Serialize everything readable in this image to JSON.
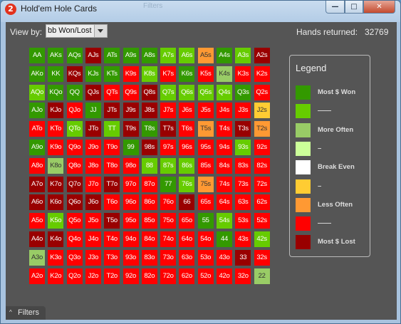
{
  "window": {
    "title": "Hold'em Hole Cards",
    "ghost_title": "Filters"
  },
  "app_icon": {
    "glyph": "2",
    "color": "#e2321d"
  },
  "window_controls": {
    "minimize": "—",
    "maximize": "□",
    "close": "✕"
  },
  "toolbar": {
    "view_by_label": "View by:",
    "view_by_value": "bb Won/Lost"
  },
  "hands": {
    "label": "Hands returned:",
    "value": "32769"
  },
  "palette": {
    "dg": "#339900",
    "mg": "#66cc00",
    "lg": "#99cc66",
    "pg": "#ccff99",
    "w": "#ffffff",
    "yo": "#ffcc33",
    "or": "#ff9933",
    "rd": "#ff0000",
    "dr": "#990000"
  },
  "legend": {
    "title": "Legend",
    "items": [
      {
        "color": "#339900",
        "label": "Most $ Won"
      },
      {
        "color": "#66cc00",
        "label": "——"
      },
      {
        "color": "#99cc66",
        "label": "More Often"
      },
      {
        "color": "#ccff99",
        "label": "–"
      },
      {
        "color": "#ffffff",
        "label": "Break Even"
      },
      {
        "color": "#ffcc33",
        "label": "–"
      },
      {
        "color": "#ff9933",
        "label": "Less Often"
      },
      {
        "color": "#ff0000",
        "label": "——"
      },
      {
        "color": "#990000",
        "label": "Most $ Lost"
      }
    ]
  },
  "grid": {
    "rows": [
      [
        [
          "AA",
          "dg"
        ],
        [
          "AKs",
          "dg"
        ],
        [
          "AQs",
          "dg"
        ],
        [
          "AJs",
          "dr"
        ],
        [
          "ATs",
          "dg"
        ],
        [
          "A9s",
          "dg"
        ],
        [
          "A8s",
          "dg"
        ],
        [
          "A7s",
          "mg"
        ],
        [
          "A6s",
          "mg"
        ],
        [
          "A5s",
          "or"
        ],
        [
          "A4s",
          "dg"
        ],
        [
          "A3s",
          "mg"
        ],
        [
          "A2s",
          "dr"
        ]
      ],
      [
        [
          "AKo",
          "dg"
        ],
        [
          "KK",
          "dg"
        ],
        [
          "KQs",
          "dr"
        ],
        [
          "KJs",
          "dg"
        ],
        [
          "KTs",
          "dg"
        ],
        [
          "K9s",
          "rd"
        ],
        [
          "K8s",
          "mg"
        ],
        [
          "K7s",
          "rd"
        ],
        [
          "K6s",
          "dg"
        ],
        [
          "K5s",
          "rd"
        ],
        [
          "K4s",
          "lg"
        ],
        [
          "K3s",
          "rd"
        ],
        [
          "K2s",
          "rd"
        ]
      ],
      [
        [
          "AQo",
          "mg"
        ],
        [
          "KQo",
          "dg"
        ],
        [
          "QQ",
          "dg"
        ],
        [
          "QJs",
          "dr"
        ],
        [
          "QTs",
          "rd"
        ],
        [
          "Q9s",
          "rd"
        ],
        [
          "Q8s",
          "dr"
        ],
        [
          "Q7s",
          "mg"
        ],
        [
          "Q6s",
          "mg"
        ],
        [
          "Q5s",
          "mg"
        ],
        [
          "Q4s",
          "mg"
        ],
        [
          "Q3s",
          "dg"
        ],
        [
          "Q2s",
          "rd"
        ]
      ],
      [
        [
          "AJo",
          "dg"
        ],
        [
          "KJo",
          "dr"
        ],
        [
          "QJo",
          "rd"
        ],
        [
          "JJ",
          "dg"
        ],
        [
          "JTs",
          "dr"
        ],
        [
          "J9s",
          "dr"
        ],
        [
          "J8s",
          "dr"
        ],
        [
          "J7s",
          "rd"
        ],
        [
          "J6s",
          "rd"
        ],
        [
          "J5s",
          "rd"
        ],
        [
          "J4s",
          "rd"
        ],
        [
          "J3s",
          "rd"
        ],
        [
          "J2s",
          "yo"
        ]
      ],
      [
        [
          "ATo",
          "rd"
        ],
        [
          "KTo",
          "rd"
        ],
        [
          "QTo",
          "mg"
        ],
        [
          "JTo",
          "dr"
        ],
        [
          "TT",
          "mg"
        ],
        [
          "T9s",
          "dr"
        ],
        [
          "T8s",
          "dg"
        ],
        [
          "T7s",
          "dr"
        ],
        [
          "T6s",
          "rd"
        ],
        [
          "T5s",
          "or"
        ],
        [
          "T4s",
          "rd"
        ],
        [
          "T3s",
          "dr"
        ],
        [
          "T2s",
          "or"
        ]
      ],
      [
        [
          "A9o",
          "dg"
        ],
        [
          "K9o",
          "rd"
        ],
        [
          "Q9o",
          "rd"
        ],
        [
          "J9o",
          "rd"
        ],
        [
          "T9o",
          "rd"
        ],
        [
          "99",
          "dg"
        ],
        [
          "98s",
          "dr"
        ],
        [
          "97s",
          "rd"
        ],
        [
          "96s",
          "rd"
        ],
        [
          "95s",
          "rd"
        ],
        [
          "94s",
          "rd"
        ],
        [
          "93s",
          "mg"
        ],
        [
          "92s",
          "rd"
        ]
      ],
      [
        [
          "A8o",
          "rd"
        ],
        [
          "K8o",
          "lg"
        ],
        [
          "Q8o",
          "rd"
        ],
        [
          "J8o",
          "rd"
        ],
        [
          "T8o",
          "rd"
        ],
        [
          "98o",
          "rd"
        ],
        [
          "88",
          "mg"
        ],
        [
          "87s",
          "mg"
        ],
        [
          "86s",
          "mg"
        ],
        [
          "85s",
          "rd"
        ],
        [
          "84s",
          "rd"
        ],
        [
          "83s",
          "rd"
        ],
        [
          "82s",
          "rd"
        ]
      ],
      [
        [
          "A7o",
          "dr"
        ],
        [
          "K7o",
          "dr"
        ],
        [
          "Q7o",
          "dr"
        ],
        [
          "J7o",
          "rd"
        ],
        [
          "T7o",
          "dr"
        ],
        [
          "97o",
          "rd"
        ],
        [
          "87o",
          "rd"
        ],
        [
          "77",
          "dg"
        ],
        [
          "76s",
          "mg"
        ],
        [
          "75s",
          "or"
        ],
        [
          "74s",
          "rd"
        ],
        [
          "73s",
          "rd"
        ],
        [
          "72s",
          "rd"
        ]
      ],
      [
        [
          "A6o",
          "dr"
        ],
        [
          "K6o",
          "dr"
        ],
        [
          "Q6o",
          "dr"
        ],
        [
          "J6o",
          "dr"
        ],
        [
          "T6o",
          "rd"
        ],
        [
          "96o",
          "rd"
        ],
        [
          "86o",
          "rd"
        ],
        [
          "76o",
          "rd"
        ],
        [
          "66",
          "dr"
        ],
        [
          "65s",
          "rd"
        ],
        [
          "64s",
          "rd"
        ],
        [
          "63s",
          "rd"
        ],
        [
          "62s",
          "rd"
        ]
      ],
      [
        [
          "A5o",
          "rd"
        ],
        [
          "K5o",
          "mg"
        ],
        [
          "Q5o",
          "rd"
        ],
        [
          "J5o",
          "rd"
        ],
        [
          "T5o",
          "dr"
        ],
        [
          "95o",
          "rd"
        ],
        [
          "85o",
          "rd"
        ],
        [
          "75o",
          "rd"
        ],
        [
          "65o",
          "rd"
        ],
        [
          "55",
          "dg"
        ],
        [
          "54s",
          "mg"
        ],
        [
          "53s",
          "rd"
        ],
        [
          "52s",
          "rd"
        ]
      ],
      [
        [
          "A4o",
          "dr"
        ],
        [
          "K4o",
          "dr"
        ],
        [
          "Q4o",
          "rd"
        ],
        [
          "J4o",
          "rd"
        ],
        [
          "T4o",
          "rd"
        ],
        [
          "94o",
          "rd"
        ],
        [
          "84o",
          "rd"
        ],
        [
          "74o",
          "rd"
        ],
        [
          "64o",
          "rd"
        ],
        [
          "54o",
          "rd"
        ],
        [
          "44",
          "dg"
        ],
        [
          "43s",
          "rd"
        ],
        [
          "42s",
          "mg"
        ]
      ],
      [
        [
          "A3o",
          "lg"
        ],
        [
          "K3o",
          "rd"
        ],
        [
          "Q3o",
          "rd"
        ],
        [
          "J3o",
          "rd"
        ],
        [
          "T3o",
          "rd"
        ],
        [
          "93o",
          "rd"
        ],
        [
          "83o",
          "rd"
        ],
        [
          "73o",
          "rd"
        ],
        [
          "63o",
          "rd"
        ],
        [
          "53o",
          "rd"
        ],
        [
          "43o",
          "rd"
        ],
        [
          "33",
          "dr"
        ],
        [
          "32s",
          "rd"
        ]
      ],
      [
        [
          "A2o",
          "rd"
        ],
        [
          "K2o",
          "rd"
        ],
        [
          "Q2o",
          "rd"
        ],
        [
          "J2o",
          "rd"
        ],
        [
          "T2o",
          "rd"
        ],
        [
          "92o",
          "rd"
        ],
        [
          "82o",
          "rd"
        ],
        [
          "72o",
          "rd"
        ],
        [
          "62o",
          "rd"
        ],
        [
          "52o",
          "rd"
        ],
        [
          "42o",
          "rd"
        ],
        [
          "32o",
          "rd"
        ],
        [
          "22",
          "lg"
        ]
      ]
    ]
  },
  "footer": {
    "filters_label": "Filters",
    "filters_caret": "^"
  }
}
